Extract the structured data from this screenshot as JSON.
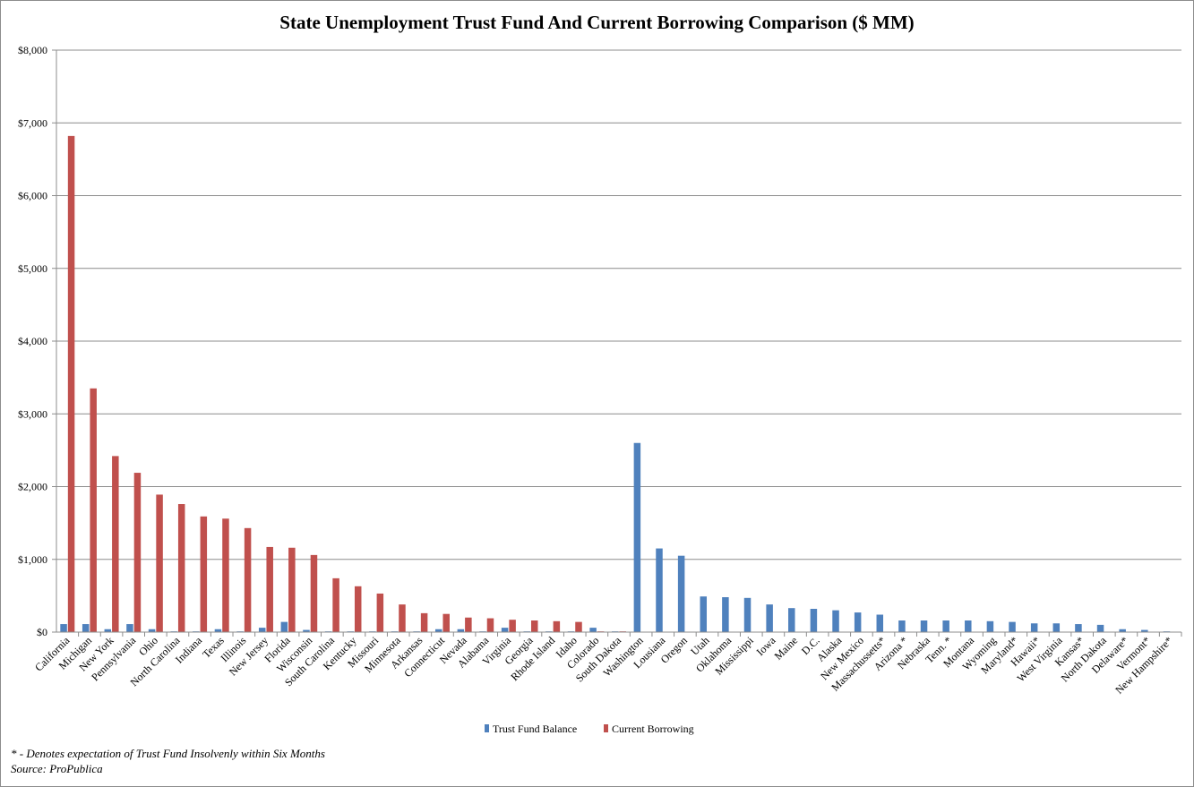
{
  "chart_data": {
    "type": "bar",
    "title": "State Unemployment Trust Fund And Current Borrowing Comparison ($ MM)",
    "xlabel": "",
    "ylabel": "",
    "ylim": [
      0,
      8000
    ],
    "yticks": [
      0,
      1000,
      2000,
      3000,
      4000,
      5000,
      6000,
      7000,
      8000
    ],
    "ytick_labels": [
      "$0",
      "$1,000",
      "$2,000",
      "$3,000",
      "$4,000",
      "$5,000",
      "$6,000",
      "$7,000",
      "$8,000"
    ],
    "grid": true,
    "legend_position": "bottom",
    "categories": [
      "California",
      "Michigan",
      "New York",
      "Pennsylvania",
      "Ohio",
      "North Carolina",
      "Indiana",
      "Texas",
      "Illinois",
      "New Jersey",
      "Florida",
      "Wisconsin",
      "South Carolina",
      "Kentucky",
      "Missouri",
      "Minnesota",
      "Arkansas",
      "Connecticut",
      "Nevada",
      "Alabama",
      "Virginia",
      "Georgia",
      "Rhode Island",
      "Idaho",
      "Colorado",
      "South Dakota",
      "Washington",
      "Lousiana",
      "Oregon",
      "Utah",
      "Oklahoma",
      "Mississippi",
      "Iowa",
      "Maine",
      "D.C.",
      "Alaska",
      "New Mexico",
      "Massachussetts*",
      "Arizona *",
      "Nebraska",
      "Tenn. *",
      "Montana",
      "Wyoming",
      "Maryland*",
      "Hawaii*",
      "West Virginia",
      "Kansas*",
      "North Dakota",
      "Delaware*",
      "Vermont*",
      "New Hampshire*"
    ],
    "series": [
      {
        "name": "Trust Fund Balance",
        "color": "#4f81bd",
        "values": [
          110,
          110,
          40,
          110,
          40,
          10,
          10,
          40,
          10,
          60,
          140,
          30,
          10,
          10,
          10,
          10,
          10,
          40,
          40,
          10,
          60,
          10,
          10,
          10,
          60,
          10,
          2600,
          1150,
          1050,
          490,
          480,
          470,
          380,
          330,
          320,
          300,
          270,
          240,
          160,
          160,
          160,
          160,
          150,
          140,
          120,
          120,
          110,
          100,
          40,
          30,
          10
        ]
      },
      {
        "name": "Current Borrowing",
        "color": "#c0504d",
        "values": [
          6820,
          3350,
          2420,
          2190,
          1890,
          1760,
          1590,
          1560,
          1430,
          1170,
          1160,
          1060,
          740,
          630,
          530,
          380,
          260,
          250,
          200,
          190,
          170,
          160,
          150,
          140,
          10,
          10,
          0,
          0,
          0,
          0,
          0,
          0,
          0,
          0,
          0,
          0,
          0,
          0,
          0,
          0,
          0,
          0,
          0,
          0,
          0,
          0,
          0,
          0,
          0,
          0,
          0
        ]
      }
    ]
  },
  "footnote": {
    "line1": "* - Denotes expectation of Trust Fund Insolvenly within Six Months",
    "line2": "Source: ProPublica"
  }
}
